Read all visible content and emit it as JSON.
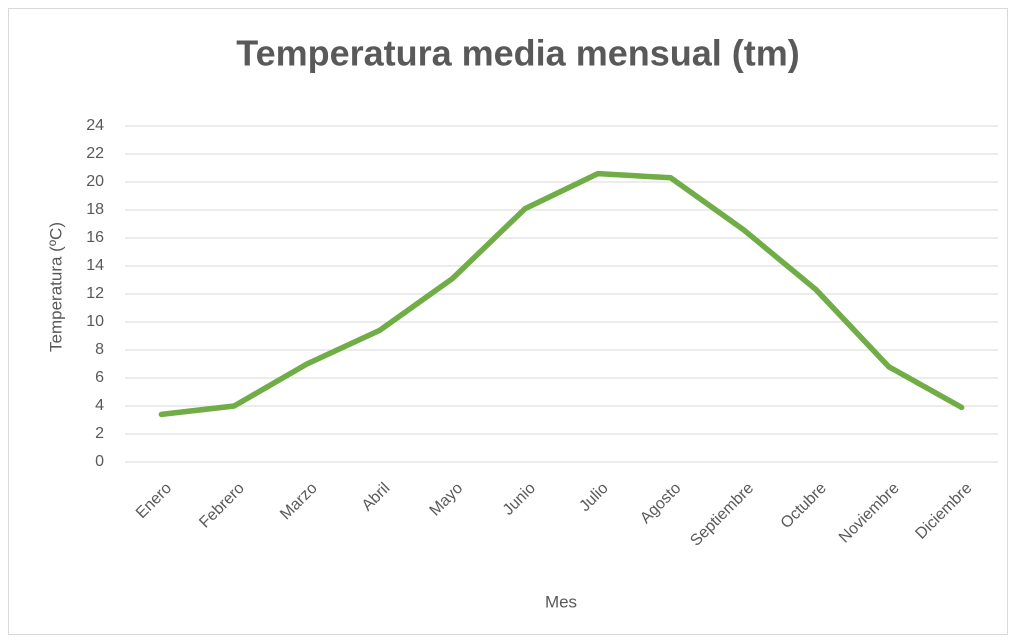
{
  "chart_data": {
    "type": "line",
    "title": "Temperatura media mensual (tm)",
    "x_label": "Mes",
    "y_label": "Temperatura (ºC)",
    "categories": [
      "Enero",
      "Febrero",
      "Marzo",
      "Abril",
      "Mayo",
      "Junio",
      "Julio",
      "Agosto",
      "Septiembre",
      "Octubre",
      "Noviembre",
      "Diciembre"
    ],
    "series": [
      {
        "name": "tm",
        "color": "#70ad47",
        "values": [
          3.4,
          4.0,
          7.0,
          9.4,
          13.1,
          18.1,
          20.6,
          20.3,
          16.6,
          12.3,
          6.8,
          3.9
        ]
      }
    ],
    "ylim": [
      0,
      24
    ],
    "yticks": [
      0,
      2,
      4,
      6,
      8,
      10,
      12,
      14,
      16,
      18,
      20,
      22,
      24
    ],
    "grid": true
  }
}
